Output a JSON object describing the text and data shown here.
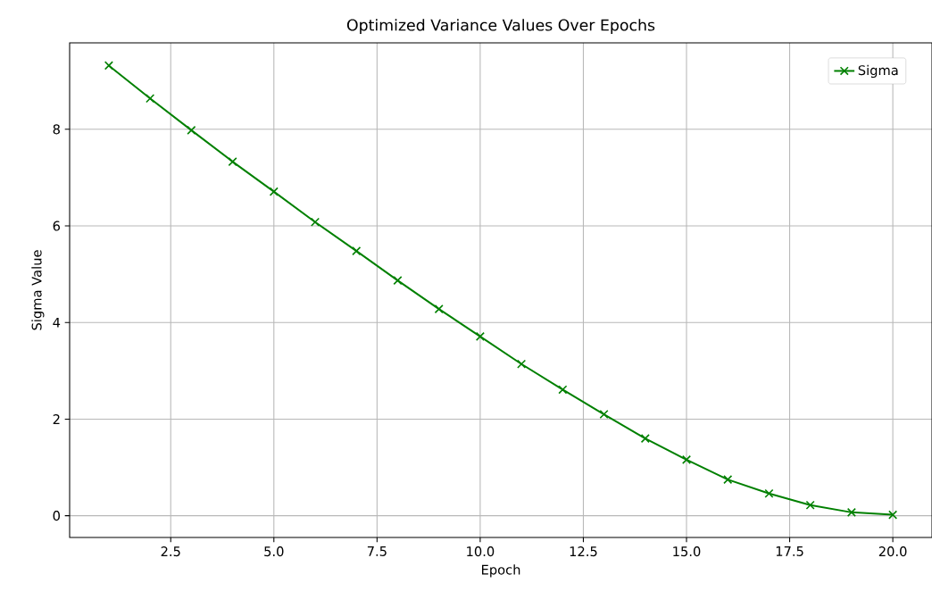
{
  "chart_data": {
    "type": "line",
    "title": "Optimized Variance Values Over Epochs",
    "xlabel": "Epoch",
    "ylabel": "Sigma Value",
    "x": [
      1,
      2,
      3,
      4,
      5,
      6,
      7,
      8,
      9,
      10,
      11,
      12,
      13,
      14,
      15,
      16,
      17,
      18,
      19,
      20
    ],
    "series": [
      {
        "name": "Sigma",
        "color": "#008000",
        "values": [
          9.32,
          8.64,
          7.98,
          7.33,
          6.71,
          6.08,
          5.48,
          4.87,
          4.28,
          3.71,
          3.14,
          2.61,
          2.1,
          1.6,
          1.16,
          0.75,
          0.46,
          0.22,
          0.07,
          0.02
        ]
      }
    ],
    "xlim": [
      0.05,
      20.95
    ],
    "ylim": [
      -0.45,
      9.79
    ],
    "xticks": [
      {
        "value": 2.5,
        "label": "2.5"
      },
      {
        "value": 5,
        "label": "5.0"
      },
      {
        "value": 7.5,
        "label": "7.5"
      },
      {
        "value": 10,
        "label": "10.0"
      },
      {
        "value": 12.5,
        "label": "12.5"
      },
      {
        "value": 15,
        "label": "15.0"
      },
      {
        "value": 17.5,
        "label": "17.5"
      },
      {
        "value": 20,
        "label": "20.0"
      }
    ],
    "yticks": [
      0,
      2,
      4,
      6,
      8
    ],
    "grid": true,
    "legend": "top right",
    "marker": "cross",
    "line_style": "solid"
  }
}
